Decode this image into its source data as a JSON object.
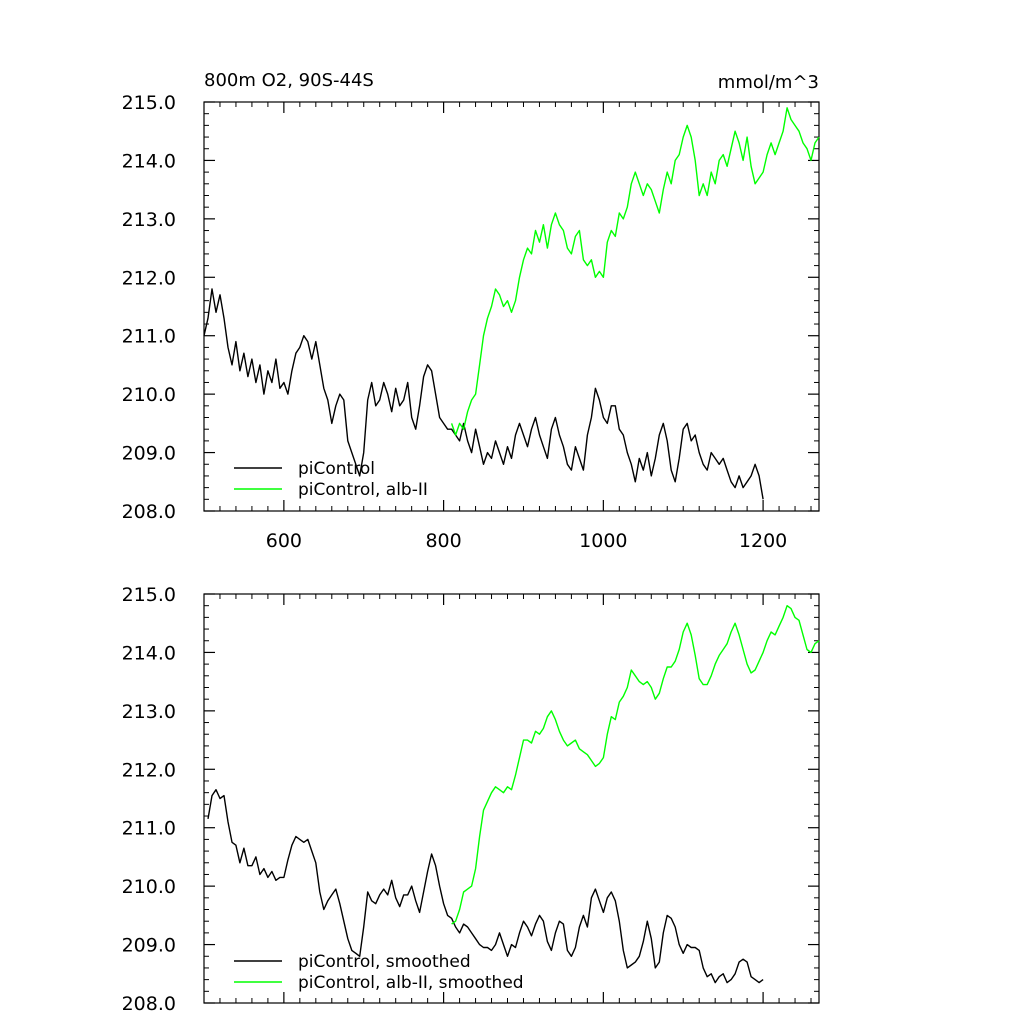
{
  "chart_data": [
    {
      "type": "line",
      "title": "800m O2, 90S-44S",
      "units": "mmol/m^3",
      "xlim": [
        500,
        1270
      ],
      "ylim": [
        208.0,
        215.0
      ],
      "xticks": [
        600,
        800,
        1000,
        1200
      ],
      "xtick_labels": [
        "600",
        "800",
        "1000",
        "1200"
      ],
      "yticks": [
        208.0,
        209.0,
        210.0,
        211.0,
        212.0,
        213.0,
        214.0,
        215.0
      ],
      "ytick_labels": [
        "208.0",
        "209.0",
        "210.0",
        "211.0",
        "212.0",
        "213.0",
        "214.0",
        "215.0"
      ],
      "legend_position": "bottom-left",
      "series": [
        {
          "name": "piControl",
          "color": "#000000",
          "x": [
            500,
            505,
            510,
            515,
            520,
            525,
            530,
            535,
            540,
            545,
            550,
            555,
            560,
            565,
            570,
            575,
            580,
            585,
            590,
            595,
            600,
            605,
            610,
            615,
            620,
            625,
            630,
            635,
            640,
            645,
            650,
            655,
            660,
            665,
            670,
            675,
            680,
            685,
            690,
            695,
            700,
            705,
            710,
            715,
            720,
            725,
            730,
            735,
            740,
            745,
            750,
            755,
            760,
            765,
            770,
            775,
            780,
            785,
            790,
            795,
            800,
            805,
            810,
            815,
            820,
            825,
            830,
            835,
            840,
            845,
            850,
            855,
            860,
            865,
            870,
            875,
            880,
            885,
            890,
            895,
            900,
            905,
            910,
            915,
            920,
            925,
            930,
            935,
            940,
            945,
            950,
            955,
            960,
            965,
            970,
            975,
            980,
            985,
            990,
            995,
            1000,
            1005,
            1010,
            1015,
            1020,
            1025,
            1030,
            1035,
            1040,
            1045,
            1050,
            1055,
            1060,
            1065,
            1070,
            1075,
            1080,
            1085,
            1090,
            1095,
            1100,
            1105,
            1110,
            1115,
            1120,
            1125,
            1130,
            1135,
            1140,
            1145,
            1150,
            1155,
            1160,
            1165,
            1170,
            1175,
            1180,
            1185,
            1190,
            1195,
            1200
          ],
          "y": [
            211.0,
            211.3,
            211.8,
            211.4,
            211.7,
            211.3,
            210.8,
            210.5,
            210.9,
            210.4,
            210.7,
            210.3,
            210.6,
            210.2,
            210.5,
            210.0,
            210.4,
            210.2,
            210.6,
            210.1,
            210.2,
            210.0,
            210.4,
            210.7,
            210.8,
            211.0,
            210.9,
            210.6,
            210.9,
            210.5,
            210.1,
            209.9,
            209.5,
            209.8,
            210.0,
            209.9,
            209.2,
            209.0,
            208.8,
            208.6,
            209.0,
            209.9,
            210.2,
            209.8,
            209.9,
            210.2,
            210.0,
            209.7,
            210.1,
            209.8,
            209.9,
            210.2,
            209.6,
            209.4,
            209.8,
            210.3,
            210.5,
            210.4,
            210.0,
            209.6,
            209.5,
            209.4,
            209.4,
            209.3,
            209.2,
            209.5,
            209.2,
            209.0,
            209.4,
            209.1,
            208.8,
            209.0,
            208.9,
            209.2,
            209.0,
            208.8,
            209.1,
            208.9,
            209.3,
            209.5,
            209.3,
            209.1,
            209.4,
            209.6,
            209.3,
            209.1,
            208.9,
            209.4,
            209.6,
            209.3,
            209.1,
            208.8,
            208.7,
            209.1,
            208.9,
            208.7,
            209.3,
            209.6,
            210.1,
            209.9,
            209.6,
            209.5,
            209.8,
            209.8,
            209.4,
            209.3,
            209.0,
            208.8,
            208.5,
            208.9,
            208.7,
            209.0,
            208.6,
            208.9,
            209.3,
            209.5,
            209.2,
            208.7,
            208.5,
            208.9,
            209.4,
            209.5,
            209.2,
            209.3,
            209.0,
            208.8,
            208.7,
            209.0,
            208.9,
            208.8,
            208.9,
            208.7,
            208.5,
            208.4,
            208.6,
            208.4,
            208.5,
            208.6,
            208.8,
            208.6,
            208.2
          ]
        },
        {
          "name": "piControl, alb-II",
          "color": "#00ff00",
          "x": [
            810,
            815,
            820,
            825,
            830,
            835,
            840,
            845,
            850,
            855,
            860,
            865,
            870,
            875,
            880,
            885,
            890,
            895,
            900,
            905,
            910,
            915,
            920,
            925,
            930,
            935,
            940,
            945,
            950,
            955,
            960,
            965,
            970,
            975,
            980,
            985,
            990,
            995,
            1000,
            1005,
            1010,
            1015,
            1020,
            1025,
            1030,
            1035,
            1040,
            1045,
            1050,
            1055,
            1060,
            1065,
            1070,
            1075,
            1080,
            1085,
            1090,
            1095,
            1100,
            1105,
            1110,
            1115,
            1120,
            1125,
            1130,
            1135,
            1140,
            1145,
            1150,
            1155,
            1160,
            1165,
            1170,
            1175,
            1180,
            1185,
            1190,
            1195,
            1200,
            1205,
            1210,
            1215,
            1220,
            1225,
            1230,
            1235,
            1240,
            1245,
            1250,
            1255,
            1260,
            1265,
            1270
          ],
          "y": [
            209.5,
            209.3,
            209.5,
            209.4,
            209.7,
            209.9,
            210.0,
            210.5,
            211.0,
            211.3,
            211.5,
            211.8,
            211.7,
            211.5,
            211.6,
            211.4,
            211.6,
            212.0,
            212.3,
            212.5,
            212.4,
            212.8,
            212.6,
            212.9,
            212.5,
            212.9,
            213.1,
            212.9,
            212.8,
            212.5,
            212.4,
            212.7,
            212.8,
            212.3,
            212.2,
            212.3,
            212.0,
            212.1,
            212.0,
            212.6,
            212.8,
            212.7,
            213.1,
            213.0,
            213.2,
            213.6,
            213.8,
            213.6,
            213.4,
            213.6,
            213.5,
            213.3,
            213.1,
            213.5,
            213.8,
            213.6,
            214.0,
            214.1,
            214.4,
            214.6,
            214.4,
            214.0,
            213.4,
            213.6,
            213.4,
            213.8,
            213.6,
            214.0,
            214.1,
            213.9,
            214.2,
            214.5,
            214.3,
            214.0,
            214.4,
            213.9,
            213.6,
            213.7,
            213.8,
            214.1,
            214.3,
            214.1,
            214.3,
            214.5,
            214.9,
            214.7,
            214.6,
            214.5,
            214.3,
            214.2,
            214.0,
            214.3,
            214.4
          ]
        }
      ]
    },
    {
      "type": "line",
      "xlim": [
        500,
        1270
      ],
      "ylim": [
        208.0,
        215.0
      ],
      "xticks": [
        600,
        800,
        1000,
        1200
      ],
      "yticks": [
        208.0,
        209.0,
        210.0,
        211.0,
        212.0,
        213.0,
        214.0,
        215.0
      ],
      "ytick_labels": [
        "208.0",
        "209.0",
        "210.0",
        "211.0",
        "212.0",
        "213.0",
        "214.0",
        "215.0"
      ],
      "legend_position": "bottom-left",
      "series": [
        {
          "name": "piControl, smoothed",
          "color": "#000000",
          "x": [
            505,
            510,
            515,
            520,
            525,
            530,
            535,
            540,
            545,
            550,
            555,
            560,
            565,
            570,
            575,
            580,
            585,
            590,
            595,
            600,
            605,
            610,
            615,
            620,
            625,
            630,
            635,
            640,
            645,
            650,
            655,
            660,
            665,
            670,
            675,
            680,
            685,
            690,
            695,
            700,
            705,
            710,
            715,
            720,
            725,
            730,
            735,
            740,
            745,
            750,
            755,
            760,
            765,
            770,
            775,
            780,
            785,
            790,
            795,
            800,
            805,
            810,
            815,
            820,
            825,
            830,
            835,
            840,
            845,
            850,
            855,
            860,
            865,
            870,
            875,
            880,
            885,
            890,
            895,
            900,
            905,
            910,
            915,
            920,
            925,
            930,
            935,
            940,
            945,
            950,
            955,
            960,
            965,
            970,
            975,
            980,
            985,
            990,
            995,
            1000,
            1005,
            1010,
            1015,
            1020,
            1025,
            1030,
            1035,
            1040,
            1045,
            1050,
            1055,
            1060,
            1065,
            1070,
            1075,
            1080,
            1085,
            1090,
            1095,
            1100,
            1105,
            1110,
            1115,
            1120,
            1125,
            1130,
            1135,
            1140,
            1145,
            1150,
            1155,
            1160,
            1165,
            1170,
            1175,
            1180,
            1185,
            1190,
            1195,
            1200
          ],
          "y": [
            211.15,
            211.55,
            211.65,
            211.5,
            211.55,
            211.1,
            210.75,
            210.7,
            210.4,
            210.65,
            210.35,
            210.35,
            210.5,
            210.2,
            210.3,
            210.15,
            210.25,
            210.1,
            210.15,
            210.15,
            210.45,
            210.7,
            210.85,
            210.8,
            210.75,
            210.8,
            210.6,
            210.4,
            209.9,
            209.6,
            209.75,
            209.85,
            209.95,
            209.7,
            209.4,
            209.1,
            208.9,
            208.85,
            208.8,
            209.3,
            209.9,
            209.75,
            209.7,
            209.85,
            209.95,
            209.85,
            210.1,
            209.8,
            209.65,
            209.85,
            209.85,
            210.0,
            209.75,
            209.55,
            209.9,
            210.25,
            210.55,
            210.35,
            210.0,
            209.7,
            209.5,
            209.45,
            209.3,
            209.2,
            209.35,
            209.3,
            209.2,
            209.1,
            209.0,
            208.95,
            208.95,
            208.9,
            209.0,
            209.2,
            209.0,
            208.8,
            209.0,
            208.95,
            209.2,
            209.4,
            209.3,
            209.15,
            209.35,
            209.5,
            209.4,
            209.05,
            208.9,
            209.2,
            209.4,
            209.35,
            208.9,
            208.8,
            208.95,
            209.3,
            209.5,
            209.3,
            209.8,
            209.95,
            209.75,
            209.55,
            209.8,
            209.9,
            209.75,
            209.4,
            208.9,
            208.6,
            208.65,
            208.7,
            208.8,
            209.05,
            209.4,
            209.1,
            208.6,
            208.7,
            209.2,
            209.5,
            209.45,
            209.3,
            209.0,
            208.85,
            209.0,
            208.95,
            208.95,
            208.9,
            208.6,
            208.45,
            208.5,
            208.35,
            208.45,
            208.5,
            208.35,
            208.4,
            208.5,
            208.7,
            208.75,
            208.7,
            208.45,
            208.4,
            208.35,
            208.4
          ]
        },
        {
          "name": "piControl, alb-II, smoothed",
          "color": "#00ff00",
          "x": [
            810,
            815,
            820,
            825,
            830,
            835,
            840,
            845,
            850,
            855,
            860,
            865,
            870,
            875,
            880,
            885,
            890,
            895,
            900,
            905,
            910,
            915,
            920,
            925,
            930,
            935,
            940,
            945,
            950,
            955,
            960,
            965,
            970,
            975,
            980,
            985,
            990,
            995,
            1000,
            1005,
            1010,
            1015,
            1020,
            1025,
            1030,
            1035,
            1040,
            1045,
            1050,
            1055,
            1060,
            1065,
            1070,
            1075,
            1080,
            1085,
            1090,
            1095,
            1100,
            1105,
            1110,
            1115,
            1120,
            1125,
            1130,
            1135,
            1140,
            1145,
            1150,
            1155,
            1160,
            1165,
            1170,
            1175,
            1180,
            1185,
            1190,
            1195,
            1200,
            1205,
            1210,
            1215,
            1220,
            1225,
            1230,
            1235,
            1240,
            1245,
            1250,
            1255,
            1260,
            1265,
            1270
          ],
          "y": [
            209.35,
            209.4,
            209.6,
            209.9,
            209.95,
            210.0,
            210.3,
            210.85,
            211.3,
            211.45,
            211.6,
            211.7,
            211.65,
            211.6,
            211.7,
            211.65,
            211.9,
            212.2,
            212.5,
            212.5,
            212.45,
            212.65,
            212.6,
            212.7,
            212.9,
            213.0,
            212.85,
            212.65,
            212.5,
            212.4,
            212.45,
            212.5,
            212.35,
            212.3,
            212.25,
            212.15,
            212.05,
            212.1,
            212.2,
            212.6,
            212.9,
            212.85,
            213.15,
            213.25,
            213.4,
            213.7,
            213.6,
            213.5,
            213.45,
            213.5,
            213.4,
            213.2,
            213.3,
            213.55,
            213.75,
            213.75,
            213.85,
            214.05,
            214.35,
            214.5,
            214.3,
            213.95,
            213.55,
            213.45,
            213.45,
            213.6,
            213.8,
            213.95,
            214.05,
            214.15,
            214.35,
            214.5,
            214.3,
            214.05,
            213.8,
            213.65,
            213.7,
            213.85,
            214.0,
            214.2,
            214.35,
            214.3,
            214.45,
            214.6,
            214.8,
            214.75,
            214.6,
            214.55,
            214.3,
            214.05,
            214.0,
            214.15,
            214.2
          ]
        }
      ]
    }
  ]
}
